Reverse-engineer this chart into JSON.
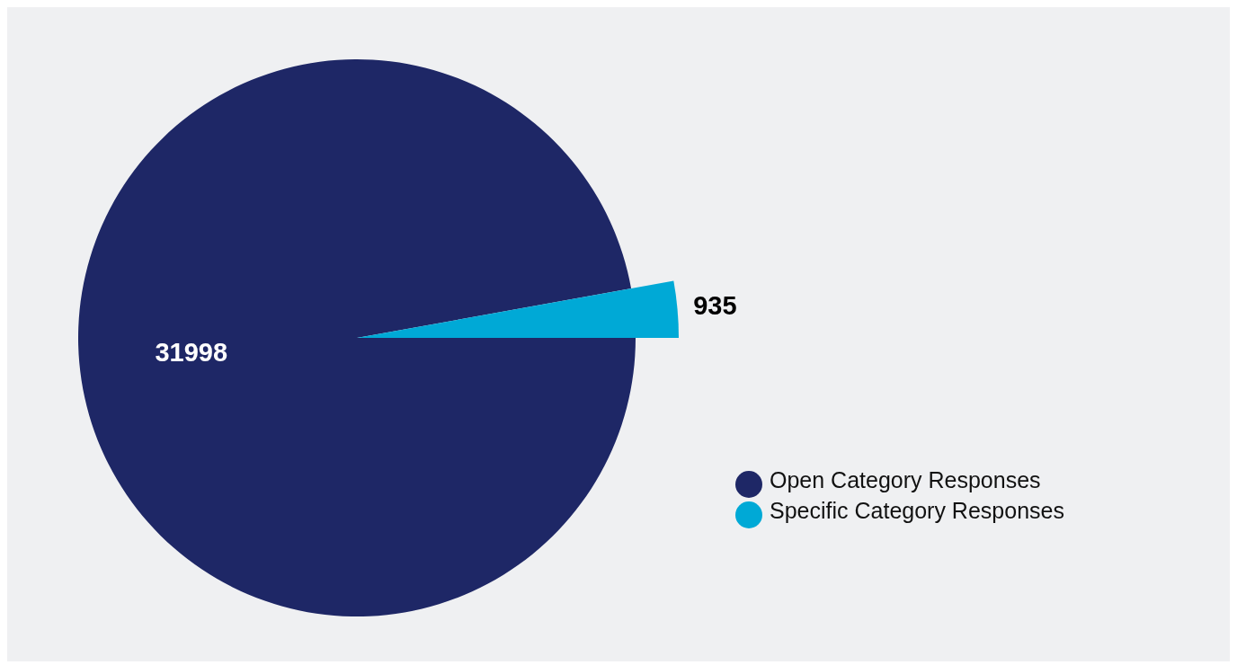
{
  "chart_data": {
    "type": "pie",
    "categories": [
      "Open Category Responses",
      "Specific Category Responses"
    ],
    "values": [
      31998,
      935
    ],
    "colors": [
      "#1e2766",
      "#00a9d6"
    ],
    "data_labels": true,
    "legend": "right"
  }
}
